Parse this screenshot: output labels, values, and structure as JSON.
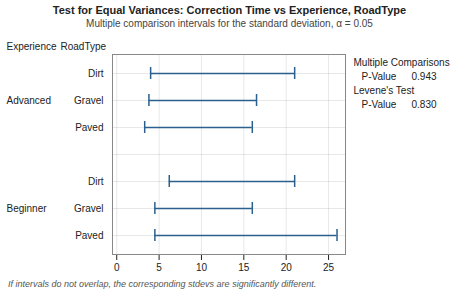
{
  "chart_data": {
    "type": "interval",
    "orientation": "horizontal",
    "title": "Test for Equal Variances: Correction Time vs Experience, RoadType",
    "subtitle": "Multiple comparison intervals for the standard deviation, α = 0.05",
    "footnote": "If intervals do not overlap, the corresponding stdevs are significantly different.",
    "column_headers": [
      "Experience",
      "RoadType"
    ],
    "categories": [
      "Dirt",
      "Gravel",
      "Paved",
      "Dirt",
      "Gravel",
      "Paved"
    ],
    "experience": [
      "Advanced",
      "Advanced",
      "Advanced",
      "Beginner",
      "Beginner",
      "Beginner"
    ],
    "low": [
      4.0,
      3.8,
      3.3,
      6.2,
      4.5,
      4.5
    ],
    "high": [
      21.0,
      16.5,
      16.0,
      21.0,
      16.0,
      26.0
    ],
    "color": "#2b5f8e",
    "xlim": [
      -0.5,
      27
    ],
    "xticks": [
      0,
      5,
      10,
      15,
      20,
      25
    ],
    "grid": true,
    "tests": [
      {
        "name": "Multiple Comparisons",
        "p_label": "P-Value",
        "p_value": "0.943"
      },
      {
        "name": "Levene's Test",
        "p_label": "P-Value",
        "p_value": "0.830"
      }
    ]
  }
}
